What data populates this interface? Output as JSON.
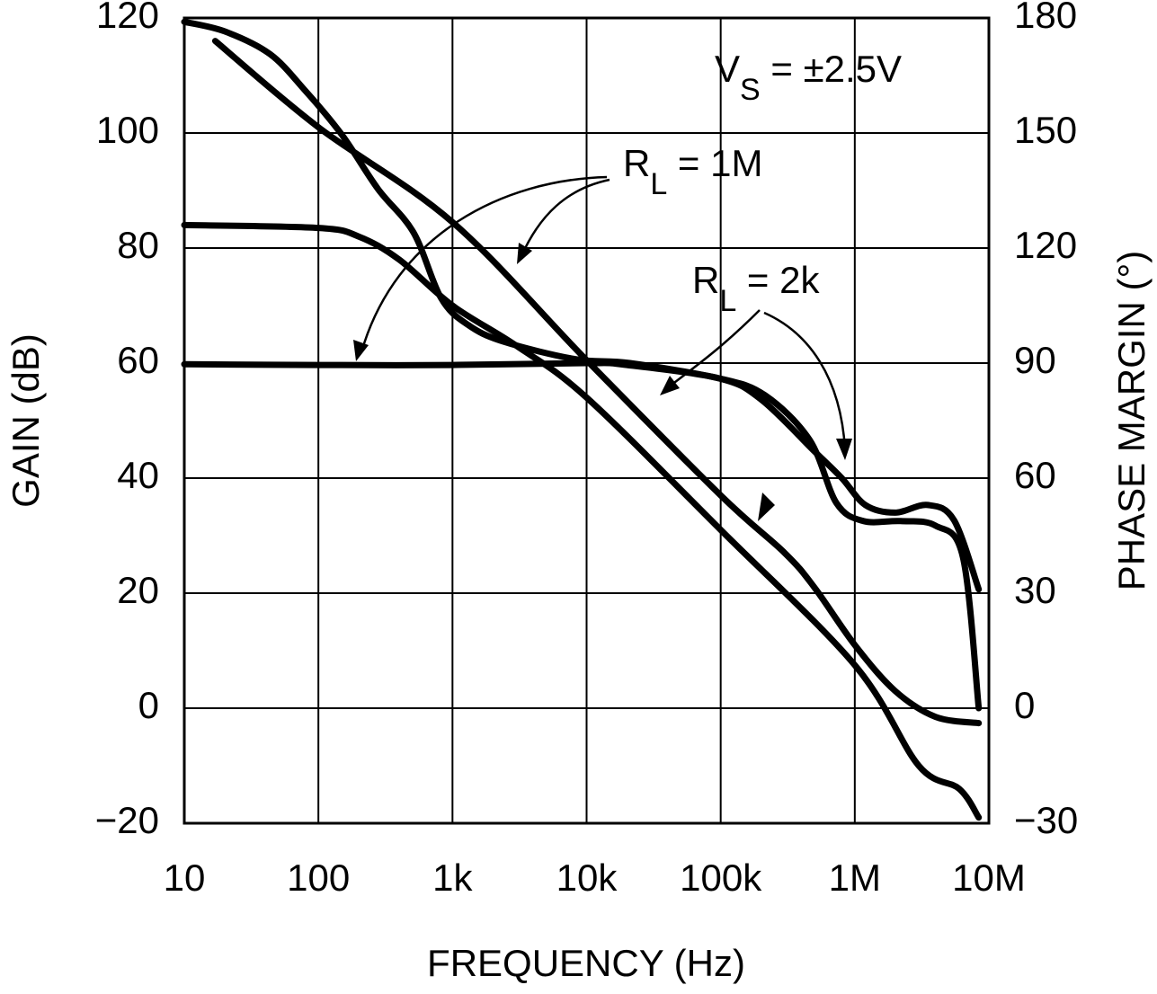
{
  "chart_data": {
    "type": "line",
    "x_label": "FREQUENCY (Hz)",
    "y_label": "GAIN (dB)",
    "y2_label": "PHASE MARGIN (°)",
    "xscale": "log",
    "xlim": [
      10,
      10000000
    ],
    "xticks": [
      10,
      100,
      {
        "value": 1000,
        "label": "1k"
      },
      {
        "value": 10000,
        "label": "10k"
      },
      {
        "value": 100000,
        "label": "100k"
      },
      {
        "value": 1000000,
        "label": "1M"
      },
      {
        "value": 10000000,
        "label": "10M"
      }
    ],
    "ylim": [
      -20,
      120
    ],
    "yticks": [
      {
        "value": -20,
        "label": "−20"
      },
      0,
      20,
      40,
      60,
      80,
      100,
      120
    ],
    "y2lim": [
      -30,
      180
    ],
    "y2ticks": [
      {
        "value": -30,
        "label": "−30"
      },
      0,
      30,
      60,
      90,
      120,
      150,
      180
    ],
    "grid": true,
    "annotations": [
      {
        "text": "V",
        "sub": "S",
        "rest": " = ±2.5V"
      },
      {
        "text": "R",
        "sub": "L",
        "rest": " = 1M"
      },
      {
        "text": "R",
        "sub": "L",
        "rest": " = 2k"
      }
    ],
    "series": [
      {
        "color": "#000000",
        "x": [
          17,
          100,
          1000,
          10000,
          100000,
          300000,
          500000,
          1000000,
          2000000,
          4000000,
          8400000
        ],
        "values": [
          116,
          101,
          84.5,
          60.5,
          37,
          27,
          21,
          11,
          3,
          -1.5,
          -2.6
        ]
      },
      {
        "color": "#000000",
        "x": [
          10,
          100,
          200,
          400,
          1000,
          3000,
          10000,
          100000,
          1000000,
          3000000,
          6000000,
          8400000
        ],
        "values": [
          84,
          83.5,
          82,
          78,
          70,
          63,
          54,
          31,
          7.5,
          -10,
          -14,
          -19
        ]
      },
      {
        "color": "#000000",
        "axis": "y2",
        "x": [
          10,
          100,
          1000,
          10000,
          20000,
          98000,
          200000,
          500000,
          800000,
          1200000,
          2000000,
          3500000,
          5500000,
          8400000
        ],
        "values": [
          89.7,
          89.5,
          89.5,
          90,
          89.5,
          86,
          80.5,
          67,
          60,
          53,
          51,
          53,
          49,
          31
        ]
      },
      {
        "color": "#000000",
        "axis": "y2",
        "x": [
          10,
          20,
          43.5,
          80,
          150,
          277,
          513,
          820,
          1300,
          2400,
          8300,
          21000,
          98000,
          214000,
          460000,
          730000,
          1160000,
          2200000,
          4000000,
          6400000,
          8400000
        ],
        "values": [
          179,
          176.5,
          170.6,
          161,
          149.5,
          135.5,
          124,
          107,
          100,
          95.6,
          91,
          90,
          86,
          81.6,
          70,
          53.5,
          48.8,
          48.8,
          47.6,
          39.4,
          0
        ]
      }
    ]
  }
}
